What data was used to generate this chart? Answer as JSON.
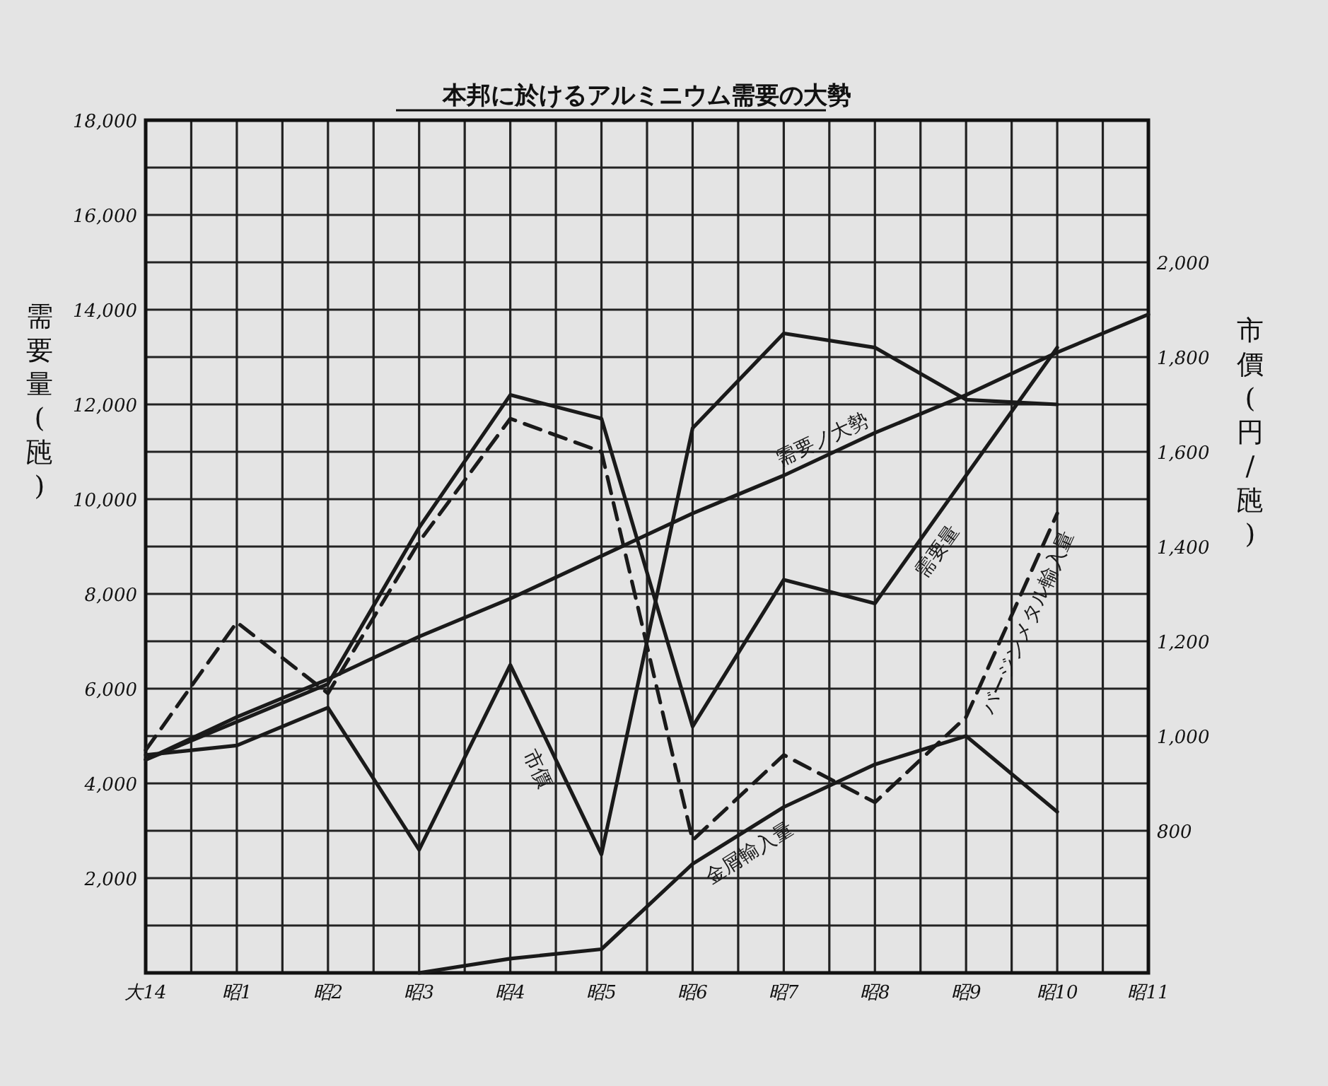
{
  "chart_data": {
    "type": "line",
    "title": "本邦に於けるアルミニウム需要の大勢",
    "ylabel": "需要量(瓲)",
    "y2label": "市價(円/瓲)",
    "categories": [
      "大14",
      "昭1",
      "昭2",
      "昭3",
      "昭4",
      "昭5",
      "昭6",
      "昭7",
      "昭8",
      "昭9",
      "昭10",
      "昭11"
    ],
    "ylim": [
      0,
      18000
    ],
    "yticks": [
      {
        "value": 0,
        "label": null
      },
      {
        "value": 1000,
        "label": null
      },
      {
        "value": 2000,
        "label": "2,000"
      },
      {
        "value": 3000,
        "label": null
      },
      {
        "value": 4000,
        "label": "4,000"
      },
      {
        "value": 5000,
        "label": null
      },
      {
        "value": 6000,
        "label": "6,000"
      },
      {
        "value": 7000,
        "label": null
      },
      {
        "value": 8000,
        "label": "8,000"
      },
      {
        "value": 9000,
        "label": null
      },
      {
        "value": 10000,
        "label": "10,000"
      },
      {
        "value": 11000,
        "label": null
      },
      {
        "value": 12000,
        "label": "12,000"
      },
      {
        "value": 13000,
        "label": null
      },
      {
        "value": 14000,
        "label": "14,000"
      },
      {
        "value": 15000,
        "label": null
      },
      {
        "value": 16000,
        "label": "16,000"
      },
      {
        "value": 17000,
        "label": null
      },
      {
        "value": 18000,
        "label": "18,000"
      }
    ],
    "y2lim": [
      500,
      2300
    ],
    "y2ticks": [
      800,
      {
        "value": 1000,
        "label": "1,000"
      },
      {
        "value": 1200,
        "label": "1,200"
      },
      {
        "value": 1400,
        "label": "1,400"
      },
      {
        "value": 1600,
        "label": "1,600"
      },
      {
        "value": 1800,
        "label": "1,800"
      },
      {
        "value": 2000,
        "label": "2,000"
      }
    ],
    "grid": true,
    "series": [
      {
        "name": "需要ノ大勢",
        "color": "#1a1a1a",
        "line_style": "solid",
        "values": [
          4500,
          5400,
          6200,
          7100,
          7900,
          8800,
          9700,
          10500,
          11400,
          12200,
          13100,
          13900
        ]
      },
      {
        "name": "需要量",
        "color": "#1a1a1a",
        "line_style": "solid",
        "values": [
          4500,
          5300,
          6100,
          9400,
          12200,
          11700,
          5200,
          8300,
          7800,
          10500,
          13200,
          null
        ]
      },
      {
        "name": "バージンメタル輸入量",
        "color": "#1a1a1a",
        "line_style": "dashed",
        "values": [
          4700,
          7400,
          5900,
          9100,
          11700,
          11000,
          2800,
          4600,
          3600,
          5400,
          9700,
          null
        ]
      },
      {
        "name": "市價",
        "color": "#1a1a1a",
        "line_style": "solid",
        "axis": "y2",
        "values": [
          960,
          980,
          1060,
          760,
          1150,
          750,
          1650,
          1850,
          1820,
          1710,
          1700,
          null
        ]
      },
      {
        "name": "金屑輸入量",
        "color": "#1a1a1a",
        "line_style": "solid",
        "values": [
          null,
          null,
          null,
          0,
          300,
          500,
          2300,
          3500,
          4400,
          5000,
          3400,
          null
        ]
      }
    ]
  }
}
